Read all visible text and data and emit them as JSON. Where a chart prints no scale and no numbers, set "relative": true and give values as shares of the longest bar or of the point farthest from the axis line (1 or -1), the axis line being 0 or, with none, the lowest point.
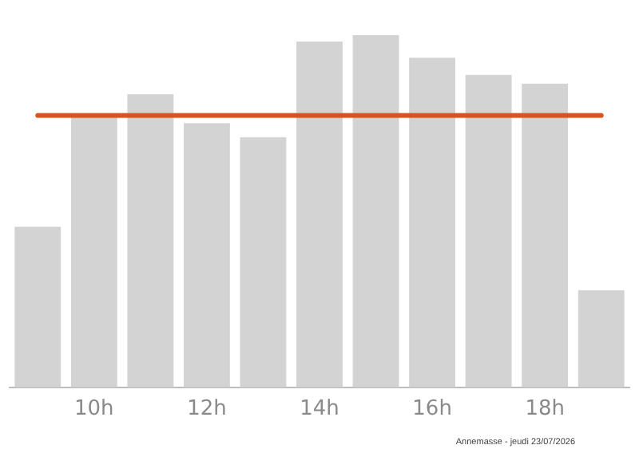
{
  "chart_data": {
    "type": "bar",
    "relative": true,
    "categories": [
      null,
      "10h",
      null,
      "12h",
      null,
      "14h",
      null,
      "16h",
      null,
      "18h",
      null
    ],
    "values": [
      0.456,
      0.775,
      0.832,
      0.75,
      0.71,
      0.982,
      1,
      0.936,
      0.887,
      0.862,
      0.276
    ],
    "color": "#d3d3d3",
    "ref_lines": [
      {
        "axis": "y",
        "value": 0.772,
        "color": "#d9531e"
      }
    ],
    "annotations": [
      "Annemasse - jeudi 23/07/2026"
    ],
    "grid": false,
    "legend": false
  }
}
